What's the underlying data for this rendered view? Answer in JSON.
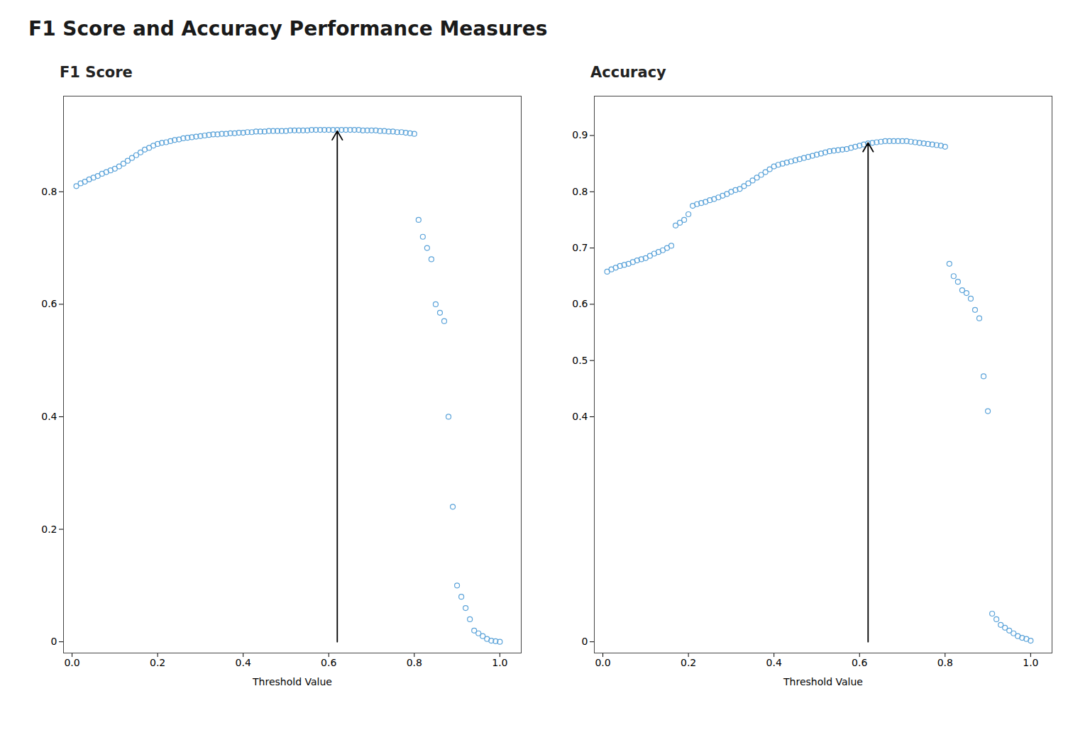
{
  "title": "F1 Score and Accuracy Performance Measures",
  "chart_data": [
    {
      "type": "scatter",
      "title": "F1 Score",
      "xlabel": "Threshold Value",
      "color": "#5ba3d9",
      "marker": "circle",
      "grid": false,
      "xlim": [
        -0.02,
        1.05
      ],
      "xticks": [
        {
          "value": 0,
          "label": "0.0"
        },
        0.2,
        0.4,
        0.6,
        0.8,
        {
          "value": 1.0,
          "label": "1.0"
        }
      ],
      "ylim": [
        -0.02,
        0.97
      ],
      "yticks": [
        0,
        0.2,
        0.4,
        0.6,
        0.8
      ],
      "x": [
        0.01,
        0.02,
        0.03,
        0.04,
        0.05,
        0.06,
        0.07,
        0.08,
        0.09,
        0.1,
        0.11,
        0.12,
        0.13,
        0.14,
        0.15,
        0.16,
        0.17,
        0.18,
        0.19,
        0.2,
        0.21,
        0.22,
        0.23,
        0.24,
        0.25,
        0.26,
        0.27,
        0.28,
        0.29,
        0.3,
        0.31,
        0.32,
        0.33,
        0.34,
        0.35,
        0.36,
        0.37,
        0.38,
        0.39,
        0.4,
        0.41,
        0.42,
        0.43,
        0.44,
        0.45,
        0.46,
        0.47,
        0.48,
        0.49,
        0.5,
        0.51,
        0.52,
        0.53,
        0.54,
        0.55,
        0.56,
        0.57,
        0.58,
        0.59,
        0.6,
        0.61,
        0.62,
        0.63,
        0.64,
        0.65,
        0.66,
        0.67,
        0.68,
        0.69,
        0.7,
        0.71,
        0.72,
        0.73,
        0.74,
        0.75,
        0.76,
        0.77,
        0.78,
        0.79,
        0.8,
        0.81,
        0.82,
        0.83,
        0.84,
        0.85,
        0.86,
        0.87,
        0.88,
        0.89,
        0.9,
        0.91,
        0.92,
        0.93,
        0.94,
        0.95,
        0.96,
        0.97,
        0.98,
        0.99,
        1.0
      ],
      "values": [
        0.81,
        0.815,
        0.818,
        0.822,
        0.825,
        0.828,
        0.832,
        0.835,
        0.838,
        0.841,
        0.845,
        0.85,
        0.855,
        0.86,
        0.865,
        0.87,
        0.875,
        0.878,
        0.882,
        0.885,
        0.887,
        0.888,
        0.89,
        0.892,
        0.893,
        0.895,
        0.896,
        0.897,
        0.898,
        0.899,
        0.9,
        0.901,
        0.902,
        0.902,
        0.903,
        0.903,
        0.904,
        0.904,
        0.905,
        0.905,
        0.906,
        0.906,
        0.907,
        0.907,
        0.907,
        0.908,
        0.908,
        0.908,
        0.908,
        0.908,
        0.909,
        0.909,
        0.909,
        0.909,
        0.909,
        0.91,
        0.91,
        0.91,
        0.91,
        0.91,
        0.91,
        0.91,
        0.91,
        0.91,
        0.91,
        0.91,
        0.91,
        0.909,
        0.909,
        0.909,
        0.909,
        0.908,
        0.908,
        0.907,
        0.907,
        0.906,
        0.906,
        0.905,
        0.904,
        0.903,
        0.75,
        0.72,
        0.7,
        0.68,
        0.6,
        0.585,
        0.57,
        0.4,
        0.24,
        0.1,
        0.08,
        0.06,
        0.04,
        0.02,
        0.015,
        0.01,
        0.005,
        0.002,
        0.001,
        0.0
      ],
      "arrows": [
        {
          "x": 0.62,
          "y_start": 0.0,
          "y_end": 0.908
        }
      ]
    },
    {
      "type": "scatter",
      "title": "Accuracy",
      "xlabel": "Threshold Value",
      "color": "#5ba3d9",
      "marker": "circle",
      "grid": false,
      "xlim": [
        -0.02,
        1.05
      ],
      "xticks": [
        {
          "value": 0,
          "label": "0.0"
        },
        0.2,
        0.4,
        0.6,
        0.8,
        {
          "value": 1.0,
          "label": "1.0"
        }
      ],
      "ylim": [
        -0.02,
        0.97
      ],
      "yticks": [
        0,
        0.4,
        0.5,
        0.6,
        0.7,
        0.8,
        0.9
      ],
      "x": [
        0.01,
        0.02,
        0.03,
        0.04,
        0.05,
        0.06,
        0.07,
        0.08,
        0.09,
        0.1,
        0.11,
        0.12,
        0.13,
        0.14,
        0.15,
        0.16,
        0.17,
        0.18,
        0.19,
        0.2,
        0.21,
        0.22,
        0.23,
        0.24,
        0.25,
        0.26,
        0.27,
        0.28,
        0.29,
        0.3,
        0.31,
        0.32,
        0.33,
        0.34,
        0.35,
        0.36,
        0.37,
        0.38,
        0.39,
        0.4,
        0.41,
        0.42,
        0.43,
        0.44,
        0.45,
        0.46,
        0.47,
        0.48,
        0.49,
        0.5,
        0.51,
        0.52,
        0.53,
        0.54,
        0.55,
        0.56,
        0.57,
        0.58,
        0.59,
        0.6,
        0.61,
        0.62,
        0.63,
        0.64,
        0.65,
        0.66,
        0.67,
        0.68,
        0.69,
        0.7,
        0.71,
        0.72,
        0.73,
        0.74,
        0.75,
        0.76,
        0.77,
        0.78,
        0.79,
        0.8,
        0.81,
        0.82,
        0.83,
        0.84,
        0.85,
        0.86,
        0.87,
        0.88,
        0.89,
        0.9,
        0.91,
        0.92,
        0.93,
        0.94,
        0.95,
        0.96,
        0.97,
        0.98,
        0.99,
        1.0
      ],
      "values": [
        0.658,
        0.662,
        0.665,
        0.668,
        0.67,
        0.672,
        0.675,
        0.678,
        0.68,
        0.682,
        0.686,
        0.69,
        0.693,
        0.696,
        0.7,
        0.704,
        0.74,
        0.745,
        0.75,
        0.76,
        0.775,
        0.778,
        0.78,
        0.782,
        0.785,
        0.787,
        0.79,
        0.793,
        0.796,
        0.8,
        0.803,
        0.805,
        0.81,
        0.815,
        0.82,
        0.825,
        0.83,
        0.835,
        0.84,
        0.845,
        0.848,
        0.85,
        0.852,
        0.854,
        0.856,
        0.858,
        0.86,
        0.862,
        0.864,
        0.866,
        0.868,
        0.87,
        0.872,
        0.873,
        0.874,
        0.875,
        0.876,
        0.878,
        0.88,
        0.882,
        0.884,
        0.886,
        0.887,
        0.888,
        0.889,
        0.89,
        0.89,
        0.89,
        0.89,
        0.89,
        0.89,
        0.889,
        0.888,
        0.887,
        0.886,
        0.885,
        0.884,
        0.883,
        0.882,
        0.88,
        0.672,
        0.65,
        0.64,
        0.625,
        0.62,
        0.61,
        0.59,
        0.575,
        0.472,
        0.41,
        0.05,
        0.04,
        0.03,
        0.025,
        0.02,
        0.015,
        0.01,
        0.007,
        0.005,
        0.002
      ],
      "arrows": [
        {
          "x": 0.62,
          "y_start": 0.0,
          "y_end": 0.887
        }
      ]
    }
  ]
}
